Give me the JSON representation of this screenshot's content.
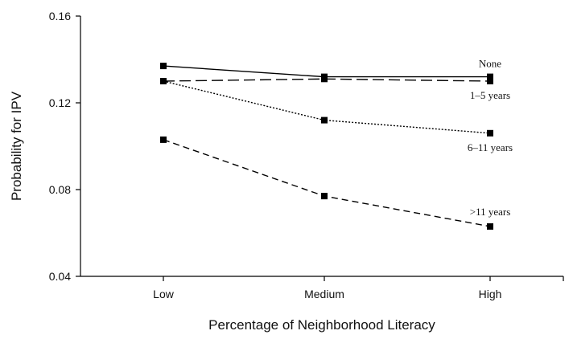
{
  "chart_data": {
    "type": "line",
    "title": "",
    "xlabel": "Percentage of Neighborhood Literacy",
    "ylabel": "Probability for IPV",
    "categories": [
      "Low",
      "Medium",
      "High"
    ],
    "ylim": [
      0.04,
      0.16
    ],
    "yticks": [
      "0.04",
      "0.08",
      "0.12",
      "0.16"
    ],
    "grid": false,
    "legend": "inline labels at line ends",
    "series": [
      {
        "name": "None",
        "values": [
          0.137,
          0.132,
          0.132
        ],
        "dash": "solid",
        "color": "#000000"
      },
      {
        "name": "1–5 years",
        "values": [
          0.13,
          0.131,
          0.13
        ],
        "dash": "longdash",
        "color": "#000000"
      },
      {
        "name": "6–11 years",
        "values": [
          0.13,
          0.112,
          0.106
        ],
        "dash": "dotted",
        "color": "#000000"
      },
      {
        "name": ">11 years",
        "values": [
          0.103,
          0.077,
          0.063
        ],
        "dash": "dashed",
        "color": "#000000"
      }
    ]
  }
}
